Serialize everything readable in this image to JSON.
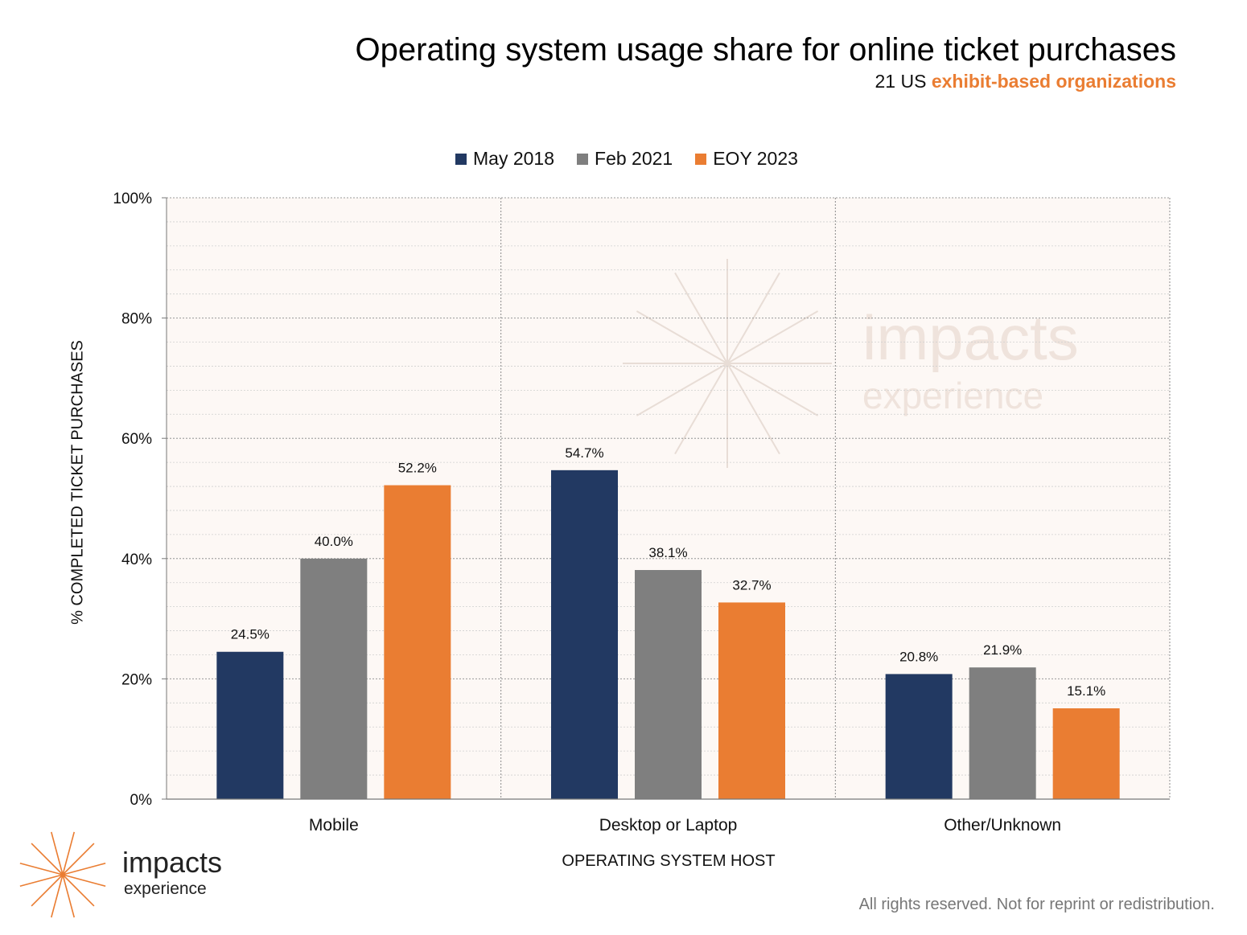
{
  "title": "Operating system usage share for online ticket purchases",
  "subtitle_prefix": "21 US",
  "subtitle_accent": "exhibit-based organizations",
  "footer": "All rights reserved. Not for reprint or redistribution.",
  "logo": {
    "line1": "impacts",
    "line2": "experience",
    "icon": "starburst-icon"
  },
  "watermark": {
    "line1": "impacts",
    "line2": "experience"
  },
  "colors": {
    "may2018": "#223962",
    "feb2021": "#7f7f7f",
    "eoy2023": "#ea7d32",
    "plot_bg": "#fdf8f5",
    "accent": "#ea7d32"
  },
  "chart_data": {
    "type": "bar",
    "title": "Operating system usage share for online ticket purchases",
    "subtitle": "21 US exhibit-based organizations",
    "categories": [
      "Mobile",
      "Desktop or Laptop",
      "Other/Unknown"
    ],
    "series": [
      {
        "name": "May 2018",
        "values": [
          24.5,
          54.7,
          20.8
        ],
        "color": "#223962"
      },
      {
        "name": "Feb 2021",
        "values": [
          40.0,
          38.1,
          21.9
        ],
        "color": "#7f7f7f"
      },
      {
        "name": "EOY 2023",
        "values": [
          52.2,
          32.7,
          15.1
        ],
        "color": "#ea7d32"
      }
    ],
    "xlabel": "OPERATING SYSTEM HOST",
    "ylabel": "% COMPLETED TICKET PURCHASES",
    "ylim": [
      0,
      100
    ],
    "yticks": [
      "0%",
      "20%",
      "40%",
      "60%",
      "80%",
      "100%"
    ],
    "legend": "top-center",
    "grid": true
  }
}
